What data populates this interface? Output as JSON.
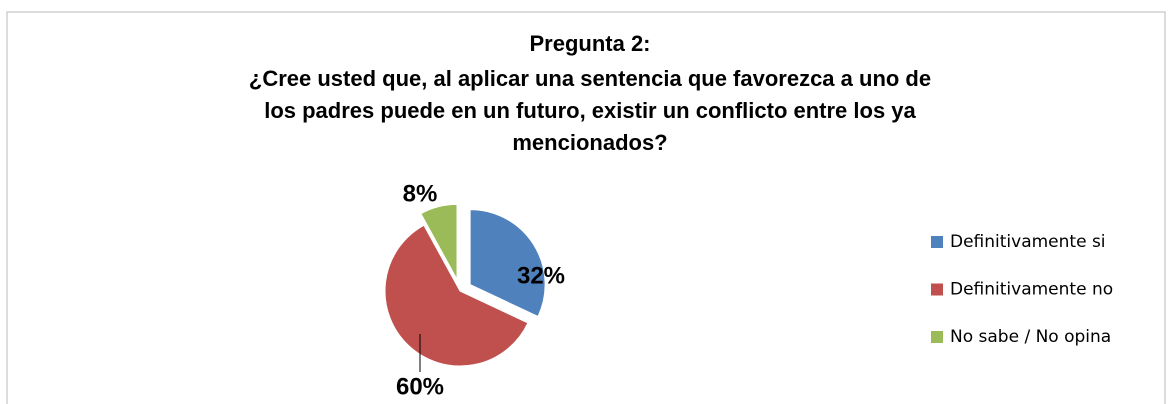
{
  "chart_data": {
    "type": "pie",
    "title": [
      "Pregunta 2:",
      "¿Cree usted que, al aplicar una sentencia que favorezca a uno de",
      "los padres puede en un futuro, existir un conflicto entre los ya",
      "mencionados?"
    ],
    "categories": [
      "Definitivamente si",
      "Definitivamente no",
      "No sabe / No opina"
    ],
    "values": [
      32,
      60,
      8
    ],
    "value_labels": [
      "32%",
      "60%",
      "8%"
    ],
    "colors": [
      "#4f81bd",
      "#c0504d",
      "#9bbb59"
    ],
    "legend": "right"
  }
}
